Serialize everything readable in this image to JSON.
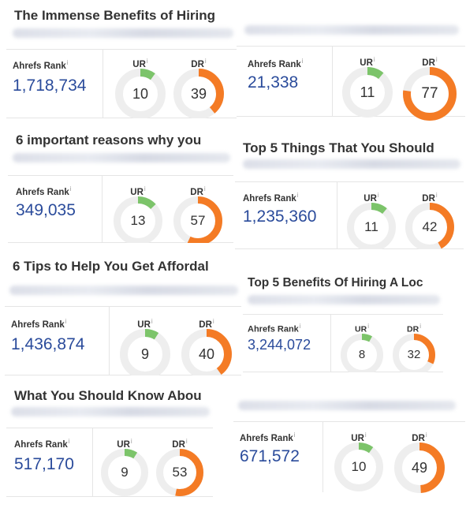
{
  "labels": {
    "ahrefs_rank": "Ahrefs Rank",
    "ur": "UR",
    "dr": "DR",
    "info": "i"
  },
  "colors": {
    "rank_blue": "#2a4b9b",
    "ur_green": "#7cc46a",
    "dr_orange": "#f47b25",
    "track_gray": "#eeeeee"
  },
  "cards": [
    {
      "title": "The Immense Benefits of Hiring",
      "ahrefs_rank": "1,718,734",
      "ur": 10,
      "dr": 39
    },
    {
      "title": "",
      "ahrefs_rank": "21,338",
      "ur": 11,
      "dr": 77
    },
    {
      "title": "6 important reasons why you",
      "ahrefs_rank": "349,035",
      "ur": 13,
      "dr": 57
    },
    {
      "title": "Top 5 Things That You Should",
      "ahrefs_rank": "1,235,360",
      "ur": 11,
      "dr": 42
    },
    {
      "title": "6 Tips to Help You Get Affordal",
      "ahrefs_rank": "1,436,874",
      "ur": 9,
      "dr": 40
    },
    {
      "title": "Top 5 Benefits Of Hiring A Loc",
      "ahrefs_rank": "3,244,072",
      "ur": 8,
      "dr": 32
    },
    {
      "title": "What You Should Know Abou",
      "ahrefs_rank": "517,170",
      "ur": 9,
      "dr": 53
    },
    {
      "title": "",
      "ahrefs_rank": "671,572",
      "ur": 10,
      "dr": 49
    }
  ]
}
